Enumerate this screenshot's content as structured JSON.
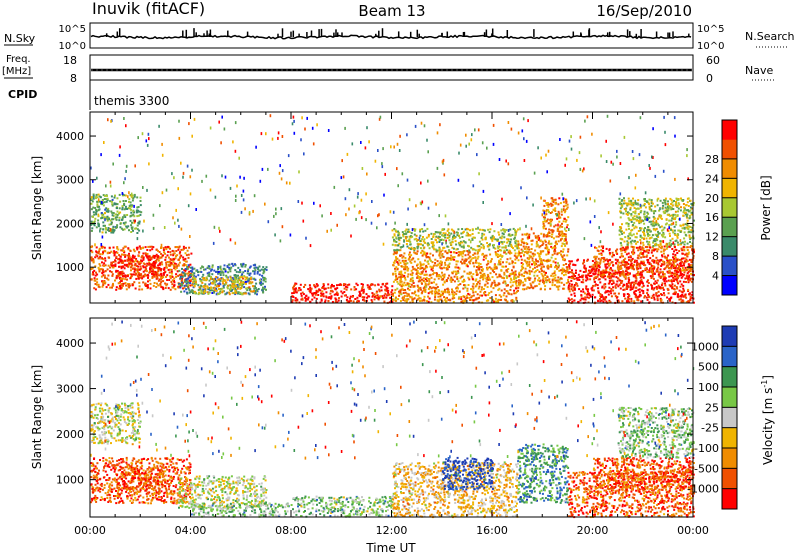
{
  "header": {
    "station": "Inuvik (fitACF)",
    "beam": "Beam 13",
    "date": "16/Sep/2010"
  },
  "status_panels": {
    "nsky": {
      "label": "N.Sky",
      "ticks": [
        "10^5",
        "10^0"
      ]
    },
    "nsearch": {
      "label": "N.Search",
      "ticks": [
        "10^5",
        "10^0"
      ]
    },
    "freq": {
      "label_line1": "Freq.",
      "label_line2": "[MHz]",
      "ticks": [
        "18",
        "8"
      ]
    },
    "nave": {
      "label": "Nave",
      "ticks": [
        "60",
        "0"
      ]
    },
    "cpid": {
      "label": "CPID",
      "value": "themis 3300"
    }
  },
  "chart_data": [
    {
      "type": "heatmap",
      "name": "power",
      "xlabel": "",
      "ylabel": "Slant Range [km]",
      "xlim": [
        0,
        24
      ],
      "ylim": [
        180,
        4550
      ],
      "yticks": [
        "1000",
        "2000",
        "3000",
        "4000"
      ],
      "colorbar": {
        "label": "Power [dB]",
        "ticks": [
          "4",
          "8",
          "12",
          "16",
          "20",
          "24",
          "28"
        ],
        "colors": [
          "#0000ff",
          "#2a50c8",
          "#3a8a6a",
          "#5aa050",
          "#a8c832",
          "#f0b400",
          "#f08c00",
          "#f05000",
          "#ff0000"
        ]
      },
      "regions": [
        {
          "t0": 0.0,
          "t1": 4.0,
          "r0": 500,
          "r1": 1500,
          "level": 7
        },
        {
          "t0": 1.0,
          "t1": 3.0,
          "r0": 800,
          "r1": 1300,
          "level": 8
        },
        {
          "t0": 3.5,
          "t1": 7.0,
          "r0": 400,
          "r1": 1100,
          "level": 2
        },
        {
          "t0": 4.0,
          "t1": 6.5,
          "r0": 400,
          "r1": 800,
          "level": 5
        },
        {
          "t0": 8.0,
          "t1": 12.0,
          "r0": 200,
          "r1": 650,
          "level": 8
        },
        {
          "t0": 12.0,
          "t1": 17.0,
          "r0": 200,
          "r1": 1400,
          "level": 6
        },
        {
          "t0": 12.0,
          "t1": 17.0,
          "r0": 1400,
          "r1": 1900,
          "level": 4
        },
        {
          "t0": 17.0,
          "t1": 19.0,
          "r0": 500,
          "r1": 1800,
          "level": 6
        },
        {
          "t0": 18.0,
          "t1": 19.0,
          "r0": 1800,
          "r1": 2600,
          "level": 6
        },
        {
          "t0": 19.0,
          "t1": 24.0,
          "r0": 200,
          "r1": 1200,
          "level": 8
        },
        {
          "t0": 20.0,
          "t1": 24.0,
          "r0": 800,
          "r1": 1500,
          "level": 7
        },
        {
          "t0": 0.0,
          "t1": 2.0,
          "r0": 1800,
          "r1": 2700,
          "level": 3
        },
        {
          "t0": 21.0,
          "t1": 24.0,
          "r0": 1500,
          "r1": 2600,
          "level": 4
        }
      ]
    },
    {
      "type": "heatmap",
      "name": "velocity",
      "xlabel": "Time UT",
      "ylabel": "Slant Range [km]",
      "xlim": [
        0,
        24
      ],
      "ylim": [
        180,
        4550
      ],
      "xticks": [
        "00:00",
        "04:00",
        "08:00",
        "12:00",
        "16:00",
        "20:00",
        "00:00"
      ],
      "yticks": [
        "1000",
        "2000",
        "3000",
        "4000"
      ],
      "colorbar": {
        "label": "Velocity [m s",
        "label_sup": "-1",
        "label_end": "]",
        "ticks": [
          "1000",
          "500",
          "100",
          "25",
          "-25",
          "-100",
          "-500",
          "-1000"
        ],
        "colors": [
          "#1e3cb4",
          "#2a64c8",
          "#3c9650",
          "#78c846",
          "#c8c8c8",
          "#f0b400",
          "#f08c00",
          "#f05000",
          "#ff0000"
        ]
      },
      "regions": [
        {
          "t0": 0.0,
          "t1": 4.0,
          "r0": 500,
          "r1": 1500,
          "level": 7
        },
        {
          "t0": 1.0,
          "t1": 3.0,
          "r0": 800,
          "r1": 1300,
          "level": 7
        },
        {
          "t0": 3.5,
          "t1": 7.0,
          "r0": 400,
          "r1": 1100,
          "level": 4
        },
        {
          "t0": 4.0,
          "t1": 8.0,
          "r0": 200,
          "r1": 500,
          "level": 3
        },
        {
          "t0": 8.0,
          "t1": 12.0,
          "r0": 200,
          "r1": 650,
          "level": 3
        },
        {
          "t0": 12.0,
          "t1": 17.0,
          "r0": 200,
          "r1": 1400,
          "level": 5
        },
        {
          "t0": 14.0,
          "t1": 16.0,
          "r0": 800,
          "r1": 1500,
          "level": 0
        },
        {
          "t0": 17.0,
          "t1": 19.0,
          "r0": 500,
          "r1": 1800,
          "level": 2
        },
        {
          "t0": 19.0,
          "t1": 24.0,
          "r0": 200,
          "r1": 1200,
          "level": 7
        },
        {
          "t0": 20.0,
          "t1": 24.0,
          "r0": 800,
          "r1": 1500,
          "level": 7
        },
        {
          "t0": 0.0,
          "t1": 2.0,
          "r0": 1800,
          "r1": 2700,
          "level": 4
        },
        {
          "t0": 21.0,
          "t1": 24.0,
          "r0": 1500,
          "r1": 2600,
          "level": 3
        }
      ]
    }
  ]
}
